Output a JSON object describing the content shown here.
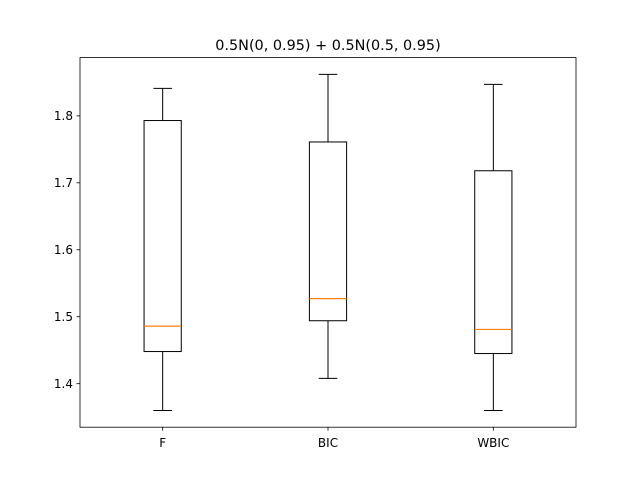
{
  "chart_data": {
    "type": "boxplot",
    "title": "0.5N(0, 0.95) + 0.5N(0.5, 0.95)",
    "xlabel": "",
    "ylabel": "",
    "categories": [
      "F",
      "BIC",
      "WBIC"
    ],
    "series": [
      {
        "category": "F",
        "values": [
          1.36,
          1.448,
          1.486,
          1.793,
          1.841
        ]
      },
      {
        "category": "BIC",
        "values": [
          1.408,
          1.494,
          1.527,
          1.761,
          1.862
        ]
      },
      {
        "category": "WBIC",
        "values": [
          1.36,
          1.445,
          1.481,
          1.718,
          1.847
        ]
      }
    ],
    "ylim": [
      1.335,
      1.887
    ],
    "yticks": [
      1.4,
      1.5,
      1.6,
      1.7,
      1.8
    ],
    "ytick_labels": [
      "1.4",
      "1.5",
      "1.6",
      "1.7",
      "1.8"
    ],
    "grid": false,
    "colors": {
      "box": "#000000",
      "median": "#ff7f0e",
      "axes": "#000000"
    }
  }
}
